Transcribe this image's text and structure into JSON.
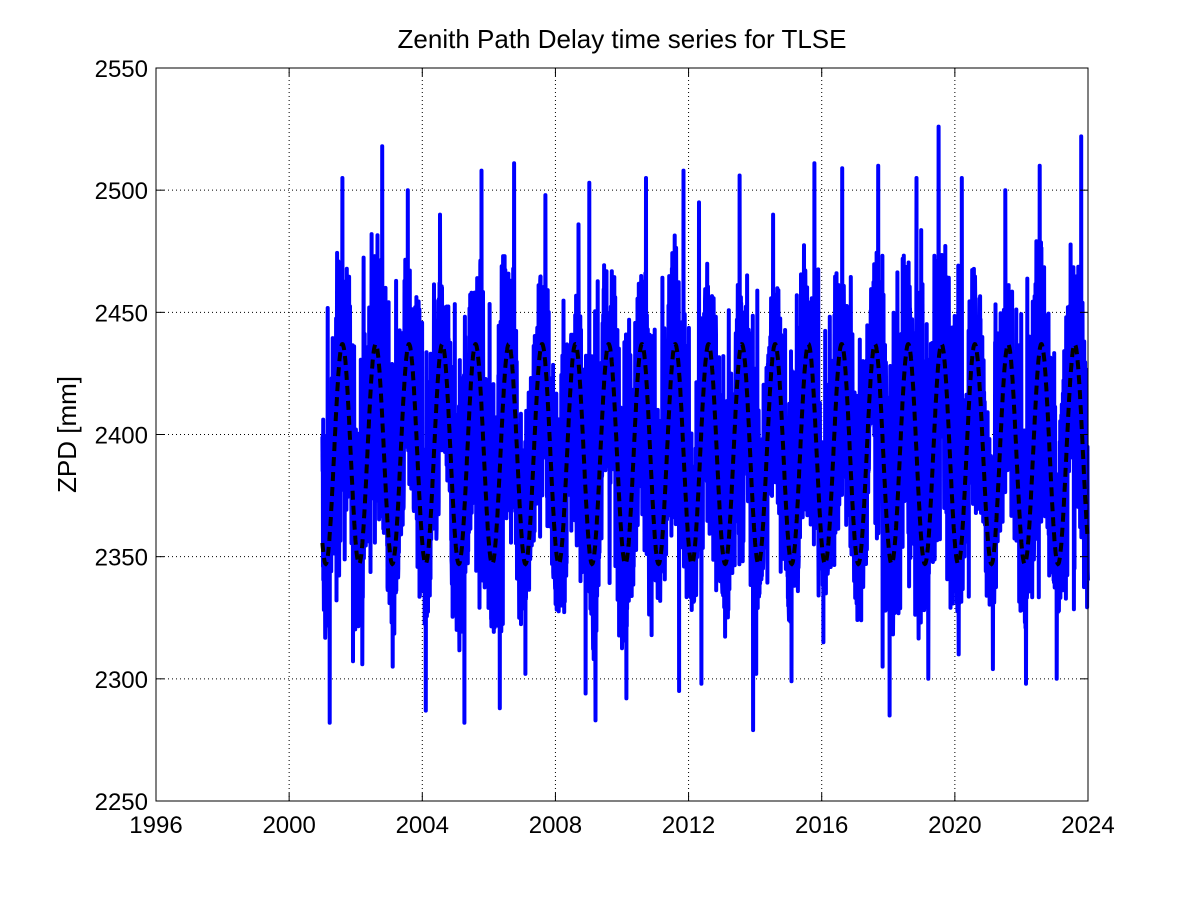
{
  "chart_data": {
    "type": "line",
    "title": "Zenith Path Delay time series for TLSE",
    "xlabel": "",
    "ylabel": "ZPD [mm]",
    "xlim": [
      1996,
      2024
    ],
    "ylim": [
      2250,
      2550
    ],
    "x_ticks": [
      "1996",
      "2000",
      "2004",
      "2008",
      "2012",
      "2016",
      "2020",
      "2024"
    ],
    "y_ticks": [
      "2250",
      "2300",
      "2350",
      "2400",
      "2450",
      "2500",
      "2550"
    ],
    "grid": true,
    "legend": "none",
    "series": [
      {
        "role": "observed",
        "color": "#0000ff",
        "style": "solid",
        "x_range": [
          2001.0,
          2024.0
        ],
        "envelope_per_year": [
          {
            "year": 2001,
            "min": 2282,
            "max": 2505
          },
          {
            "year": 2002,
            "min": 2306,
            "max": 2518
          },
          {
            "year": 2003,
            "min": 2305,
            "max": 2500
          },
          {
            "year": 2004,
            "min": 2287,
            "max": 2490
          },
          {
            "year": 2005,
            "min": 2282,
            "max": 2508
          },
          {
            "year": 2006,
            "min": 2288,
            "max": 2511
          },
          {
            "year": 2007,
            "min": 2302,
            "max": 2498
          },
          {
            "year": 2008,
            "min": 2294,
            "max": 2486
          },
          {
            "year": 2009,
            "min": 2283,
            "max": 2503
          },
          {
            "year": 2010,
            "min": 2292,
            "max": 2505
          },
          {
            "year": 2011,
            "min": 2295,
            "max": 2508
          },
          {
            "year": 2012,
            "min": 2298,
            "max": 2495
          },
          {
            "year": 2013,
            "min": 2279,
            "max": 2506
          },
          {
            "year": 2014,
            "min": 2302,
            "max": 2490
          },
          {
            "year": 2015,
            "min": 2299,
            "max": 2511
          },
          {
            "year": 2016,
            "min": 2315,
            "max": 2509
          },
          {
            "year": 2017,
            "min": 2305,
            "max": 2510
          },
          {
            "year": 2018,
            "min": 2285,
            "max": 2505
          },
          {
            "year": 2019,
            "min": 2300,
            "max": 2526
          },
          {
            "year": 2020,
            "min": 2310,
            "max": 2505
          },
          {
            "year": 2021,
            "min": 2304,
            "max": 2500
          },
          {
            "year": 2022,
            "min": 2298,
            "max": 2510
          },
          {
            "year": 2023,
            "min": 2300,
            "max": 2522
          }
        ]
      },
      {
        "role": "seasonal model",
        "color": "#000000",
        "style": "dashed",
        "x_range": [
          2001.0,
          2024.0
        ],
        "mean": 2392,
        "amplitude": 45,
        "peak_phase_year_fraction": 0.6
      }
    ]
  }
}
